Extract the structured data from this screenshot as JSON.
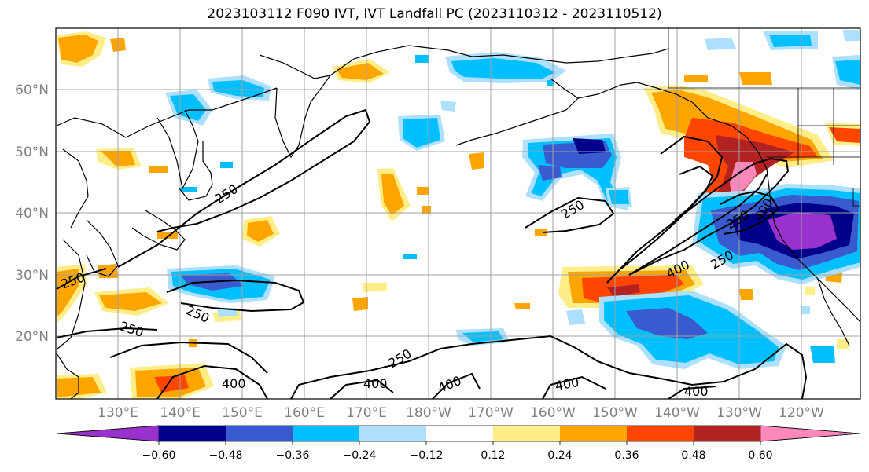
{
  "title": "2023103112 F090 IVT, IVT Landfall PC (2023110312 - 2023110512)",
  "lat_labels": [
    "60°N",
    "50°N",
    "40°N",
    "30°N",
    "20°N"
  ],
  "lon_labels": [
    "130°E",
    "140°E",
    "150°E",
    "160°E",
    "170°E",
    "180°W",
    "170°W",
    "160°W",
    "150°W",
    "140°W",
    "130°W",
    "120°W"
  ],
  "contour_labels": [
    "250",
    "250",
    "250",
    "250",
    "250",
    "250",
    "250",
    "400",
    "400",
    "400",
    "400",
    "400",
    "400",
    "250",
    "400"
  ],
  "colorbar": {
    "tick_labels": [
      "−0.60",
      "−0.48",
      "−0.36",
      "−0.24",
      "−0.12",
      "0.12",
      "0.24",
      "0.36",
      "0.48",
      "0.60"
    ],
    "colors": [
      "#9932CC",
      "#00008B",
      "#3A5BD0",
      "#00BFFF",
      "#ADDFFF",
      "#FFFFFF",
      "#FFEE88",
      "#FFA500",
      "#FF4500",
      "#B22222",
      "#FF88BB"
    ]
  },
  "colors": {
    "neg_strong": "#9932CC",
    "neg_dark": "#00008B",
    "neg_mid": "#3A5BD0",
    "neg_light": "#00BFFF",
    "neg_pale": "#ADDFFF",
    "pos_pale": "#FFEE88",
    "pos_light": "#FFA500",
    "pos_mid": "#FF4500",
    "pos_dark": "#B22222",
    "pos_strong": "#FF88BB",
    "grid": "#A0A0A0",
    "coast": "#000000"
  }
}
